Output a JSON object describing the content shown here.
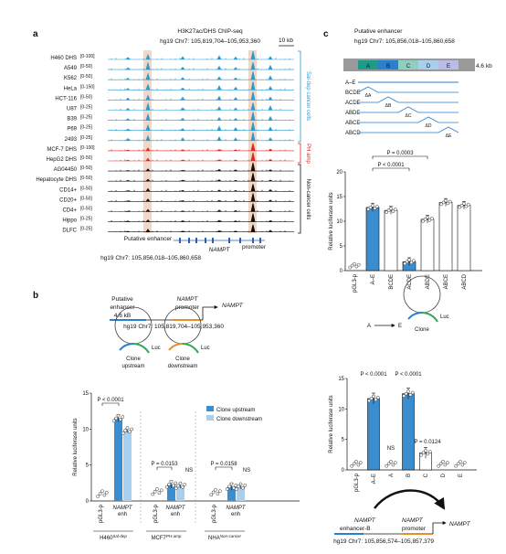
{
  "colors": {
    "cancer": "#2a9bd0",
    "phamp": "#d8282a",
    "noncancer": "#111111",
    "highlight": "#f3d7c6",
    "bar_blue": "#3a8ed0",
    "bar_light": "#a7cff0",
    "seg_a": "#1d9a8a",
    "seg_b": "#2a7fd0",
    "seg_c": "#8fcfc0",
    "seg_d": "#a8d0ec",
    "seg_e": "#b9bde6",
    "seg_side": "#9a9a9a",
    "circle_green": "#32a852",
    "circle_orange": "#e88f2a"
  },
  "panel_a": {
    "letter": "a",
    "title": "H3K27ac/DHS ChIP-seq",
    "coords": "hg19 Chr7: 105,819,704–105,953,360",
    "scale": "10 kb",
    "tracks": [
      {
        "name": "H460 DHS",
        "range": "[0-100]",
        "group": "cancer"
      },
      {
        "name": "A549",
        "range": "[0-50]",
        "group": "cancer"
      },
      {
        "name": "K562",
        "range": "[0-50]",
        "group": "cancer"
      },
      {
        "name": "HeLa",
        "range": "[0-150]",
        "group": "cancer"
      },
      {
        "name": "HCT-116",
        "range": "[0-50]",
        "group": "cancer"
      },
      {
        "name": "U87",
        "range": "[0-25]",
        "group": "cancer"
      },
      {
        "name": "B39",
        "range": "[0-25]",
        "group": "cancer"
      },
      {
        "name": "P69",
        "range": "[0-25]",
        "group": "cancer"
      },
      {
        "name": "2493",
        "range": "[0-25]",
        "group": "cancer"
      },
      {
        "name": "MCF-7 DHS",
        "range": "[0-100]",
        "group": "phamp"
      },
      {
        "name": "HepG2 DHS",
        "range": "[0-50]",
        "group": "phamp"
      },
      {
        "name": "AG04450",
        "range": "[0-50]",
        "group": "noncancer"
      },
      {
        "name": "Hepatocyte DHS",
        "range": "[0-50]",
        "group": "noncancer"
      },
      {
        "name": "CD14+",
        "range": "[0-50]",
        "group": "noncancer"
      },
      {
        "name": "CD20+",
        "range": "[0-50]",
        "group": "noncancer"
      },
      {
        "name": "CD4+",
        "range": "[0-50]",
        "group": "noncancer"
      },
      {
        "name": "Hippo",
        "range": "[0-25]",
        "group": "noncancer"
      },
      {
        "name": "DLFC",
        "range": "[0-25]",
        "group": "noncancer"
      }
    ],
    "group_labels": {
      "cancer": "Sal-dep cancer cells",
      "phamp": "PH amp",
      "noncancer": "Non-cancer cells"
    },
    "bottom_enhancer": "Putative enhancer",
    "bottom_gene": "NAMPT",
    "bottom_promoter": "promoter",
    "bottom_coords": "hg19 Chr7: 105,856,018–105,860,658"
  },
  "panel_b": {
    "letter": "b",
    "enhancer_label": "Putative enhancer",
    "size_label": "4.6 kB",
    "promoter_gene": "NAMPT",
    "promoter_word": "promoter",
    "gene_arrow": "NAMPT",
    "coords": "hg19 Chr7: 105,819,704–105,953,360",
    "clone_up": "Clone upstream",
    "clone_down": "Clone downstream",
    "luc": "Luc",
    "legend": [
      "Clone upstream",
      "Clone downstream"
    ],
    "pvals": [
      "P < 0.0001",
      "P = 0.0153",
      "NS",
      "P = 0.0158",
      "NS"
    ],
    "groups": [
      {
        "name": "H460",
        "sup": "Sal-dep"
      },
      {
        "name": "MCF7",
        "sup": "PH-amp"
      },
      {
        "name": "NHA",
        "sup": "Non-cancer"
      }
    ],
    "chart_data": {
      "type": "bar",
      "ylabel": "Relative luciferase units",
      "ylim": [
        0,
        15
      ],
      "yticks": [
        0,
        5,
        10,
        15
      ],
      "categories": [
        "pGL3-p",
        "NAMPT enh",
        "pGL3-p",
        "NAMPT enh",
        "pGL3-p",
        "NAMPT enh"
      ],
      "series": [
        {
          "name": "Clone upstream",
          "values": [
            1.0,
            11.5,
            1.3,
            2.3,
            1.2,
            2.0
          ]
        },
        {
          "name": "Clone downstream",
          "values": [
            null,
            9.8,
            null,
            2.1,
            null,
            2.0
          ]
        }
      ]
    }
  },
  "panel_c": {
    "letter": "c",
    "title": "Putative enhancer",
    "coords": "hg19 Chr7: 105,856,018–105,860,658",
    "segments": [
      "A",
      "B",
      "C",
      "D",
      "E"
    ],
    "size_label": "4.6 kb",
    "constructs": [
      {
        "name": "A–E",
        "deleted": null
      },
      {
        "name": "BCDE",
        "deleted": "ΔA"
      },
      {
        "name": "ACDE",
        "deleted": "ΔB"
      },
      {
        "name": "ABDE",
        "deleted": "ΔC"
      },
      {
        "name": "ABCE",
        "deleted": "ΔD"
      },
      {
        "name": "ABCD",
        "deleted": "ΔE"
      }
    ],
    "pvals": [
      "P = 0.0003",
      "P < 0.0001"
    ],
    "chart_data": {
      "type": "bar",
      "ylabel": "Relative luciferase units",
      "ylim": [
        0,
        20
      ],
      "yticks": [
        0,
        5,
        10,
        15,
        20
      ],
      "categories": [
        "pGL3-p",
        "A–E",
        "BCDE",
        "ACDE",
        "ABDE",
        "ABCE",
        "ABCD"
      ],
      "values": [
        1.0,
        12.8,
        12.2,
        1.8,
        10.4,
        13.8,
        13.2
      ]
    }
  },
  "panel_d": {
    "arrow_start": "A",
    "arrow_end": "E",
    "clone_label": "Clone",
    "luc": "Luc",
    "pvals": [
      "P < 0.0001",
      "P < 0.0001",
      "P = 0.0124",
      "NS"
    ],
    "enhancer_gene": "NAMPT",
    "enhancer_label": "enhancer-B",
    "promoter_gene": "NAMPT",
    "promoter_word": "promoter",
    "gene_arrow": "NAMPT",
    "coords": "hg19 Chr7: 105,856,574–105,857,379",
    "chart_data": {
      "type": "bar",
      "ylabel": "Relative luciferase units",
      "ylim": [
        0,
        15
      ],
      "yticks": [
        0,
        5,
        10,
        15
      ],
      "categories": [
        "pGL3-p",
        "A–E",
        "A",
        "B",
        "C",
        "D",
        "E"
      ],
      "values": [
        1.0,
        11.7,
        1.0,
        12.5,
        2.8,
        1.0,
        1.0
      ]
    }
  }
}
